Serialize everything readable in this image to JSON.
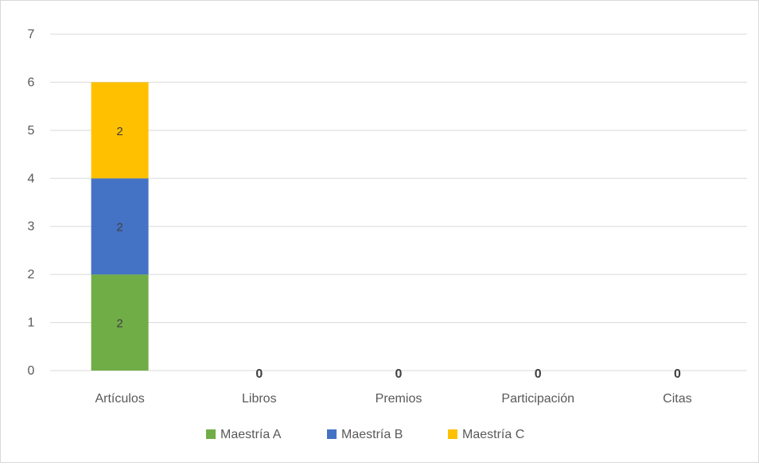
{
  "chart_data": {
    "type": "bar",
    "stacked": true,
    "title": "",
    "xlabel": "",
    "ylabel": "",
    "ylim": [
      0,
      7
    ],
    "yticks": [
      0,
      1,
      2,
      3,
      4,
      5,
      6,
      7
    ],
    "grid": true,
    "legend": "bottom",
    "categories": [
      "Artículos",
      "Libros",
      "Premios",
      "Participación",
      "Citas"
    ],
    "series": [
      {
        "name": "Maestría A",
        "color": "#70ad47",
        "values": [
          2,
          0,
          0,
          0,
          0
        ]
      },
      {
        "name": "Maestría B",
        "color": "#4472c4",
        "values": [
          2,
          0,
          0,
          0,
          0
        ]
      },
      {
        "name": "Maestría C",
        "color": "#ffc000",
        "values": [
          2,
          0,
          0,
          0,
          0
        ]
      }
    ],
    "data_labels": {
      "segment": [
        [
          "2",
          "2",
          "2"
        ]
      ],
      "zero_totals": [
        "0",
        "0",
        "0",
        "0"
      ]
    }
  }
}
